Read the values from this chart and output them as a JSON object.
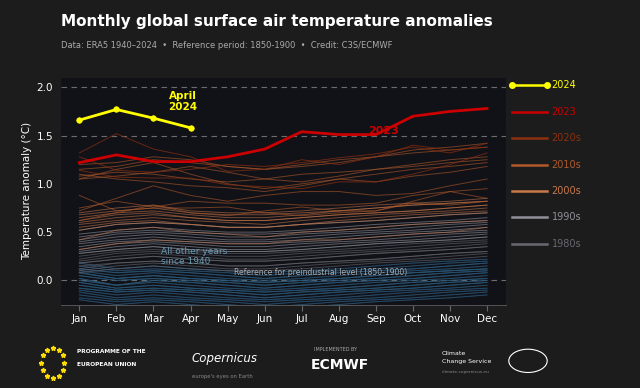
{
  "title": "Monthly global surface air temperature anomalies",
  "subtitle": "Data: ERA5 1940–2024  •  Reference period: 1850-1900  •  Credit: C3S/ECMWF",
  "ylabel": "Temperature anomaly (°C)",
  "bg_color": "#1c1c1c",
  "plot_bg_color": "#111118",
  "bottom_bar_color": "#1a1a1a",
  "months": [
    "Jan",
    "Feb",
    "Mar",
    "Apr",
    "May",
    "Jun",
    "Jul",
    "Aug",
    "Sep",
    "Oct",
    "Nov",
    "Dec"
  ],
  "ylim": [
    -0.25,
    2.1
  ],
  "yticks": [
    0.0,
    0.5,
    1.0,
    1.5,
    2.0
  ],
  "dashed_lines": [
    0.0,
    1.5,
    2.0
  ],
  "year2024": [
    1.66,
    1.77,
    1.68,
    1.58,
    null,
    null,
    null,
    null,
    null,
    null,
    null,
    null
  ],
  "year2023": [
    1.22,
    1.3,
    1.23,
    1.23,
    1.28,
    1.36,
    1.54,
    1.51,
    1.51,
    1.7,
    1.75,
    1.78
  ],
  "decades": {
    "2020s": {
      "color": "#8b3010",
      "alpha": 0.7,
      "years": [
        [
          1.14,
          1.07,
          1.06,
          1.06,
          0.99,
          0.97,
          0.95,
          1.02,
          1.02,
          1.1,
          1.2,
          1.32
        ],
        [
          1.28,
          1.14,
          1.12,
          1.15,
          1.2,
          1.18,
          1.22,
          1.27,
          1.31,
          1.38,
          1.32,
          1.42
        ],
        [
          1.32,
          1.52,
          1.36,
          1.28,
          1.13,
          1.15,
          1.25,
          1.2,
          1.28,
          1.4,
          1.35,
          1.38
        ]
      ]
    },
    "2010s": {
      "color": "#b05a2a",
      "alpha": 0.6,
      "years": [
        [
          0.62,
          0.7,
          0.78,
          0.7,
          0.67,
          0.72,
          0.76,
          0.72,
          0.72,
          0.82,
          0.92,
          0.85
        ],
        [
          0.88,
          0.72,
          0.75,
          0.75,
          0.76,
          0.7,
          0.67,
          0.7,
          0.72,
          0.8,
          0.78,
          0.82
        ],
        [
          0.75,
          0.82,
          0.76,
          0.82,
          0.8,
          0.8,
          0.78,
          0.78,
          0.8,
          0.88,
          0.92,
          0.95
        ],
        [
          0.72,
          0.85,
          0.98,
          0.88,
          0.82,
          0.88,
          0.92,
          0.92,
          0.88,
          0.9,
          0.98,
          1.05
        ],
        [
          1.05,
          1.15,
          1.22,
          1.1,
          1.0,
          0.95,
          1.0,
          1.05,
          1.02,
          1.08,
          1.12,
          1.18
        ],
        [
          1.1,
          1.05,
          1.02,
          0.98,
          0.96,
          0.92,
          0.98,
          1.05,
          1.1,
          1.15,
          1.18,
          1.22
        ],
        [
          1.05,
          1.08,
          1.12,
          1.18,
          1.12,
          1.05,
          1.02,
          1.08,
          1.15,
          1.2,
          1.25,
          1.28
        ],
        [
          1.08,
          1.12,
          1.1,
          1.05,
          1.02,
          1.05,
          1.1,
          1.12,
          1.15,
          1.18,
          1.22,
          1.25
        ],
        [
          1.15,
          1.18,
          1.25,
          1.22,
          1.18,
          1.15,
          1.18,
          1.22,
          1.28,
          1.32,
          1.35,
          1.38
        ],
        [
          1.2,
          1.22,
          1.28,
          1.25,
          1.18,
          1.15,
          1.2,
          1.25,
          1.28,
          1.35,
          1.38,
          1.42
        ]
      ]
    },
    "2000s": {
      "color": "#c8784a",
      "alpha": 0.55,
      "years": [
        [
          0.32,
          0.38,
          0.42,
          0.4,
          0.38,
          0.38,
          0.42,
          0.42,
          0.45,
          0.48,
          0.5,
          0.55
        ],
        [
          0.42,
          0.52,
          0.55,
          0.5,
          0.48,
          0.45,
          0.5,
          0.52,
          0.55,
          0.58,
          0.6,
          0.62
        ],
        [
          0.55,
          0.6,
          0.62,
          0.58,
          0.55,
          0.55,
          0.58,
          0.6,
          0.62,
          0.65,
          0.68,
          0.7
        ],
        [
          0.52,
          0.58,
          0.6,
          0.58,
          0.55,
          0.55,
          0.58,
          0.62,
          0.65,
          0.68,
          0.7,
          0.72
        ],
        [
          0.62,
          0.68,
          0.7,
          0.65,
          0.62,
          0.62,
          0.65,
          0.68,
          0.7,
          0.72,
          0.75,
          0.78
        ],
        [
          0.58,
          0.62,
          0.65,
          0.62,
          0.6,
          0.58,
          0.62,
          0.65,
          0.68,
          0.7,
          0.72,
          0.75
        ],
        [
          0.68,
          0.72,
          0.75,
          0.7,
          0.68,
          0.68,
          0.7,
          0.72,
          0.75,
          0.78,
          0.8,
          0.82
        ],
        [
          0.6,
          0.65,
          0.68,
          0.65,
          0.62,
          0.62,
          0.65,
          0.68,
          0.7,
          0.72,
          0.75,
          0.78
        ],
        [
          0.7,
          0.75,
          0.78,
          0.72,
          0.7,
          0.7,
          0.72,
          0.75,
          0.78,
          0.8,
          0.82,
          0.85
        ],
        [
          0.65,
          0.7,
          0.72,
          0.68,
          0.65,
          0.65,
          0.68,
          0.72,
          0.75,
          0.78,
          0.8,
          0.82
        ]
      ]
    },
    "1990s": {
      "color": "#909098",
      "alpha": 0.6,
      "years": [
        [
          0.28,
          0.32,
          0.35,
          0.32,
          0.3,
          0.3,
          0.32,
          0.35,
          0.38,
          0.4,
          0.42,
          0.45
        ],
        [
          0.35,
          0.4,
          0.42,
          0.4,
          0.38,
          0.38,
          0.4,
          0.42,
          0.45,
          0.48,
          0.5,
          0.52
        ],
        [
          0.4,
          0.45,
          0.48,
          0.45,
          0.42,
          0.42,
          0.45,
          0.48,
          0.5,
          0.52,
          0.55,
          0.58
        ],
        [
          0.3,
          0.35,
          0.38,
          0.35,
          0.32,
          0.32,
          0.35,
          0.38,
          0.4,
          0.42,
          0.45,
          0.48
        ],
        [
          0.38,
          0.42,
          0.45,
          0.42,
          0.4,
          0.4,
          0.42,
          0.45,
          0.48,
          0.5,
          0.52,
          0.55
        ],
        [
          0.32,
          0.38,
          0.4,
          0.38,
          0.35,
          0.35,
          0.38,
          0.4,
          0.42,
          0.45,
          0.48,
          0.5
        ],
        [
          0.42,
          0.48,
          0.5,
          0.48,
          0.45,
          0.45,
          0.48,
          0.5,
          0.52,
          0.55,
          0.58,
          0.6
        ],
        [
          0.45,
          0.5,
          0.52,
          0.5,
          0.48,
          0.48,
          0.5,
          0.52,
          0.55,
          0.58,
          0.6,
          0.62
        ],
        [
          0.48,
          0.52,
          0.55,
          0.52,
          0.5,
          0.5,
          0.52,
          0.55,
          0.58,
          0.6,
          0.62,
          0.65
        ],
        [
          0.52,
          0.58,
          0.6,
          0.58,
          0.55,
          0.55,
          0.58,
          0.6,
          0.62,
          0.65,
          0.68,
          0.7
        ]
      ]
    },
    "1980s": {
      "color": "#686870",
      "alpha": 0.6,
      "years": [
        [
          0.15,
          0.18,
          0.2,
          0.18,
          0.15,
          0.15,
          0.18,
          0.2,
          0.22,
          0.25,
          0.28,
          0.3
        ],
        [
          0.18,
          0.22,
          0.25,
          0.22,
          0.2,
          0.2,
          0.22,
          0.25,
          0.28,
          0.3,
          0.32,
          0.35
        ],
        [
          0.22,
          0.28,
          0.3,
          0.28,
          0.25,
          0.25,
          0.28,
          0.3,
          0.32,
          0.35,
          0.38,
          0.4
        ],
        [
          0.1,
          0.15,
          0.18,
          0.15,
          0.12,
          0.12,
          0.15,
          0.18,
          0.2,
          0.22,
          0.25,
          0.28
        ],
        [
          0.2,
          0.25,
          0.28,
          0.25,
          0.22,
          0.22,
          0.25,
          0.28,
          0.3,
          0.32,
          0.35,
          0.38
        ],
        [
          0.12,
          0.18,
          0.2,
          0.18,
          0.15,
          0.15,
          0.18,
          0.2,
          0.22,
          0.25,
          0.28,
          0.3
        ],
        [
          0.25,
          0.3,
          0.32,
          0.3,
          0.28,
          0.28,
          0.3,
          0.32,
          0.35,
          0.38,
          0.4,
          0.42
        ],
        [
          0.08,
          0.12,
          0.15,
          0.12,
          0.1,
          0.1,
          0.12,
          0.15,
          0.18,
          0.2,
          0.22,
          0.25
        ],
        [
          0.28,
          0.32,
          0.35,
          0.32,
          0.3,
          0.3,
          0.32,
          0.35,
          0.38,
          0.4,
          0.42,
          0.45
        ],
        [
          0.18,
          0.22,
          0.25,
          0.22,
          0.2,
          0.2,
          0.22,
          0.25,
          0.28,
          0.3,
          0.32,
          0.35
        ]
      ]
    },
    "pre1980s": {
      "color": "#2a5878",
      "alpha": 0.55,
      "years": [
        [
          0.02,
          -0.05,
          0.0,
          -0.02,
          -0.05,
          -0.08,
          -0.05,
          -0.02,
          0.0,
          0.02,
          0.05,
          0.08
        ],
        [
          -0.05,
          -0.1,
          -0.08,
          -0.1,
          -0.12,
          -0.15,
          -0.12,
          -0.1,
          -0.08,
          -0.05,
          -0.02,
          0.0
        ],
        [
          0.1,
          0.05,
          0.08,
          0.05,
          0.02,
          0.0,
          0.02,
          0.05,
          0.08,
          0.1,
          0.12,
          0.15
        ],
        [
          -0.08,
          -0.12,
          -0.1,
          -0.12,
          -0.15,
          -0.18,
          -0.15,
          -0.12,
          -0.1,
          -0.08,
          -0.05,
          -0.02
        ],
        [
          0.15,
          0.1,
          0.12,
          0.1,
          0.08,
          0.05,
          0.08,
          0.1,
          0.12,
          0.15,
          0.18,
          0.2
        ],
        [
          -0.02,
          -0.08,
          -0.05,
          -0.08,
          -0.1,
          -0.12,
          -0.1,
          -0.08,
          -0.05,
          -0.02,
          0.0,
          0.02
        ],
        [
          0.08,
          0.02,
          0.05,
          0.02,
          0.0,
          -0.02,
          0.0,
          0.02,
          0.05,
          0.08,
          0.1,
          0.12
        ],
        [
          -0.1,
          -0.15,
          -0.12,
          -0.15,
          -0.18,
          -0.2,
          -0.18,
          -0.15,
          -0.12,
          -0.1,
          -0.08,
          -0.05
        ],
        [
          0.05,
          0.0,
          0.02,
          0.0,
          -0.02,
          -0.05,
          -0.02,
          0.0,
          0.02,
          0.05,
          0.08,
          0.1
        ],
        [
          -0.12,
          -0.18,
          -0.15,
          -0.18,
          -0.2,
          -0.22,
          -0.2,
          -0.18,
          -0.15,
          -0.12,
          -0.1,
          -0.08
        ],
        [
          0.12,
          0.08,
          0.1,
          0.08,
          0.05,
          0.02,
          0.05,
          0.08,
          0.1,
          0.12,
          0.15,
          0.18
        ],
        [
          -0.15,
          -0.2,
          -0.18,
          -0.2,
          -0.22,
          -0.25,
          -0.22,
          -0.2,
          -0.18,
          -0.15,
          -0.12,
          -0.1
        ],
        [
          0.0,
          -0.05,
          -0.02,
          -0.05,
          -0.08,
          -0.1,
          -0.08,
          -0.05,
          -0.02,
          0.0,
          0.02,
          0.05
        ],
        [
          -0.18,
          -0.22,
          -0.2,
          -0.22,
          -0.25,
          -0.28,
          -0.25,
          -0.22,
          -0.2,
          -0.18,
          -0.15,
          -0.12
        ],
        [
          0.18,
          0.12,
          0.15,
          0.12,
          0.1,
          0.08,
          0.1,
          0.12,
          0.15,
          0.18,
          0.2,
          0.22
        ],
        [
          -0.2,
          -0.25,
          -0.22,
          -0.25,
          -0.28,
          -0.3,
          -0.28,
          -0.25,
          -0.22,
          -0.2,
          -0.18,
          -0.15
        ],
        [
          0.05,
          0.0,
          0.02,
          0.0,
          -0.02,
          -0.05,
          -0.02,
          0.0,
          0.02,
          0.05,
          0.08,
          0.1
        ],
        [
          -0.08,
          -0.12,
          -0.1,
          -0.12,
          -0.15,
          -0.18,
          -0.15,
          -0.12,
          -0.1,
          -0.08,
          -0.05,
          -0.02
        ],
        [
          0.08,
          0.02,
          0.05,
          0.02,
          0.0,
          -0.02,
          0.0,
          0.02,
          0.05,
          0.08,
          0.1,
          0.12
        ],
        [
          -0.05,
          -0.1,
          -0.08,
          -0.1,
          -0.12,
          -0.15,
          -0.12,
          -0.1,
          -0.08,
          -0.05,
          -0.02,
          0.0
        ],
        [
          0.12,
          0.08,
          0.1,
          0.08,
          0.05,
          0.02,
          0.05,
          0.08,
          0.1,
          0.12,
          0.15,
          0.18
        ],
        [
          -0.02,
          -0.08,
          -0.05,
          -0.08,
          -0.1,
          -0.12,
          -0.1,
          -0.08,
          -0.05,
          -0.02,
          0.0,
          0.02
        ],
        [
          0.02,
          -0.05,
          0.0,
          -0.02,
          -0.05,
          -0.08,
          -0.05,
          -0.02,
          0.0,
          0.02,
          0.05,
          0.08
        ],
        [
          -0.15,
          -0.2,
          -0.18,
          -0.2,
          -0.22,
          -0.25,
          -0.22,
          -0.2,
          -0.18,
          -0.15,
          -0.12,
          -0.1
        ],
        [
          0.15,
          0.1,
          0.12,
          0.1,
          0.08,
          0.05,
          0.08,
          0.1,
          0.12,
          0.15,
          0.18,
          0.2
        ],
        [
          0.0,
          -0.05,
          -0.02,
          -0.05,
          -0.08,
          -0.1,
          -0.08,
          -0.05,
          -0.02,
          0.0,
          0.02,
          0.05
        ],
        [
          -0.1,
          -0.15,
          -0.12,
          -0.15,
          -0.18,
          -0.2,
          -0.18,
          -0.15,
          -0.12,
          -0.1,
          -0.08,
          -0.05
        ],
        [
          0.08,
          0.02,
          0.05,
          0.02,
          0.0,
          -0.02,
          0.0,
          0.02,
          0.05,
          0.08,
          0.1,
          0.12
        ],
        [
          -0.12,
          -0.18,
          -0.15,
          -0.18,
          -0.2,
          -0.22,
          -0.2,
          -0.18,
          -0.15,
          -0.12,
          -0.1,
          -0.08
        ],
        [
          0.05,
          0.0,
          0.02,
          0.0,
          -0.02,
          -0.05,
          -0.02,
          0.0,
          0.02,
          0.05,
          0.08,
          0.1
        ],
        [
          -0.18,
          -0.22,
          -0.2,
          -0.22,
          -0.25,
          -0.28,
          -0.25,
          -0.22,
          -0.2,
          -0.18,
          -0.15,
          -0.12
        ],
        [
          0.1,
          0.05,
          0.08,
          0.05,
          0.02,
          0.0,
          0.02,
          0.05,
          0.08,
          0.1,
          0.12,
          0.15
        ],
        [
          -0.05,
          -0.1,
          -0.08,
          -0.1,
          -0.12,
          -0.15,
          -0.12,
          -0.1,
          -0.08,
          -0.05,
          -0.02,
          0.0
        ],
        [
          0.02,
          -0.05,
          0.0,
          -0.02,
          -0.05,
          -0.08,
          -0.05,
          -0.02,
          0.0,
          0.02,
          0.05,
          0.08
        ],
        [
          -0.08,
          -0.12,
          -0.1,
          -0.12,
          -0.15,
          -0.18,
          -0.15,
          -0.12,
          -0.1,
          -0.08,
          -0.05,
          -0.02
        ],
        [
          0.12,
          0.08,
          0.1,
          0.08,
          0.05,
          0.02,
          0.05,
          0.08,
          0.1,
          0.12,
          0.15,
          0.18
        ],
        [
          -0.2,
          -0.25,
          -0.22,
          -0.25,
          -0.28,
          -0.3,
          -0.28,
          -0.25,
          -0.22,
          -0.2,
          -0.18,
          -0.15
        ],
        [
          0.18,
          0.12,
          0.15,
          0.12,
          0.1,
          0.08,
          0.1,
          0.12,
          0.15,
          0.18,
          0.2,
          0.22
        ],
        [
          -0.02,
          -0.08,
          -0.05,
          -0.08,
          -0.1,
          -0.12,
          -0.1,
          -0.08,
          -0.05,
          -0.02,
          0.0,
          0.02
        ],
        [
          0.08,
          0.02,
          0.05,
          0.02,
          0.0,
          -0.02,
          0.0,
          0.02,
          0.05,
          0.08,
          0.1,
          0.12
        ]
      ]
    }
  },
  "legend_items": [
    {
      "label": "2024",
      "color": "#ffff00",
      "marker": true
    },
    {
      "label": "2023",
      "color": "#cc0000",
      "marker": false
    },
    {
      "label": "2020s",
      "color": "#8b3010",
      "marker": false
    },
    {
      "label": "2010s",
      "color": "#b05a2a",
      "marker": false
    },
    {
      "label": "2000s",
      "color": "#c8784a",
      "marker": false
    },
    {
      "label": "1990s",
      "color": "#909098",
      "marker": false
    },
    {
      "label": "1980s",
      "color": "#686870",
      "marker": false
    }
  ]
}
